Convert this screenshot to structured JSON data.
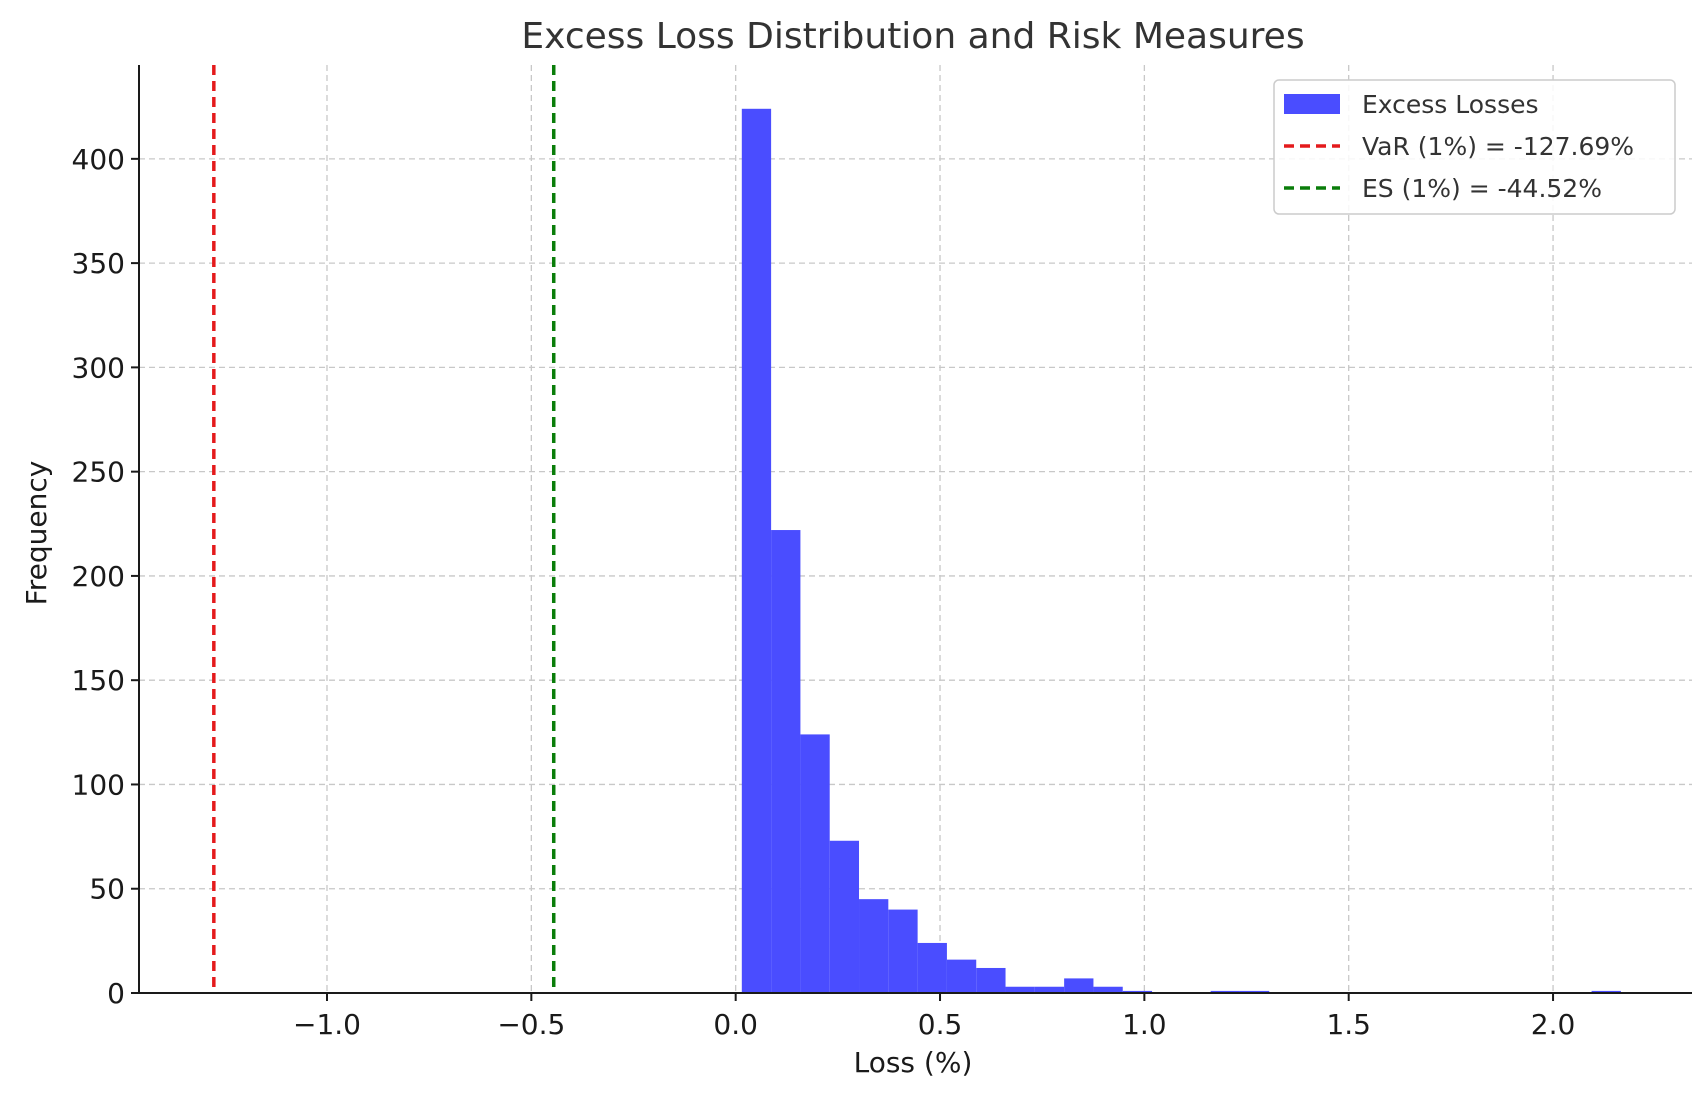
{
  "chart_data": {
    "type": "bar",
    "title": "Excess Loss Distribution and Risk Measures",
    "xlabel": "Loss (%)",
    "ylabel": "Frequency",
    "xlim": [
      -1.46,
      2.34
    ],
    "ylim": [
      0,
      445
    ],
    "x_ticks": [
      -1.0,
      -0.5,
      0.0,
      0.5,
      1.0,
      1.5,
      2.0
    ],
    "x_tick_labels": [
      "−1.0",
      "−0.5",
      "0.0",
      "0.5",
      "1.0",
      "1.5",
      "2.0"
    ],
    "y_ticks": [
      0,
      50,
      100,
      150,
      200,
      250,
      300,
      350,
      400
    ],
    "y_tick_labels": [
      "0",
      "50",
      "100",
      "150",
      "200",
      "250",
      "300",
      "350",
      "400"
    ],
    "grid": true,
    "legend_position": "top-right",
    "bin_width": 0.0717,
    "series": [
      {
        "name": "Excess Losses",
        "kind": "histogram",
        "color": "#4a4dff",
        "bins": [
          {
            "x0": 0.015,
            "count": 424
          },
          {
            "x0": 0.0867,
            "count": 222
          },
          {
            "x0": 0.1584,
            "count": 124
          },
          {
            "x0": 0.2301,
            "count": 73
          },
          {
            "x0": 0.3018,
            "count": 45
          },
          {
            "x0": 0.3735,
            "count": 40
          },
          {
            "x0": 0.4452,
            "count": 24
          },
          {
            "x0": 0.5169,
            "count": 16
          },
          {
            "x0": 0.5886,
            "count": 12
          },
          {
            "x0": 0.6603,
            "count": 3
          },
          {
            "x0": 0.732,
            "count": 3
          },
          {
            "x0": 0.8037,
            "count": 7
          },
          {
            "x0": 0.8754,
            "count": 3
          },
          {
            "x0": 0.9471,
            "count": 1
          },
          {
            "x0": 1.0188,
            "count": 0
          },
          {
            "x0": 1.0905,
            "count": 0
          },
          {
            "x0": 1.1622,
            "count": 1
          },
          {
            "x0": 1.2339,
            "count": 1
          },
          {
            "x0": 1.3056,
            "count": 0
          },
          {
            "x0": 1.3773,
            "count": 0
          },
          {
            "x0": 1.449,
            "count": 0
          },
          {
            "x0": 1.5207,
            "count": 0
          },
          {
            "x0": 1.5924,
            "count": 0
          },
          {
            "x0": 1.6641,
            "count": 0
          },
          {
            "x0": 1.7358,
            "count": 0
          },
          {
            "x0": 1.8075,
            "count": 0
          },
          {
            "x0": 1.8792,
            "count": 0
          },
          {
            "x0": 1.9509,
            "count": 0
          },
          {
            "x0": 2.0226,
            "count": 0
          },
          {
            "x0": 2.0943,
            "count": 1
          }
        ]
      },
      {
        "name": "VaR (1%) = -127.69%",
        "kind": "vline",
        "x": -1.2769,
        "color": "#e41a1c"
      },
      {
        "name": "ES (1%) = -44.52%",
        "kind": "vline",
        "x": -0.4452,
        "color": "#0a7d0a"
      }
    ]
  }
}
